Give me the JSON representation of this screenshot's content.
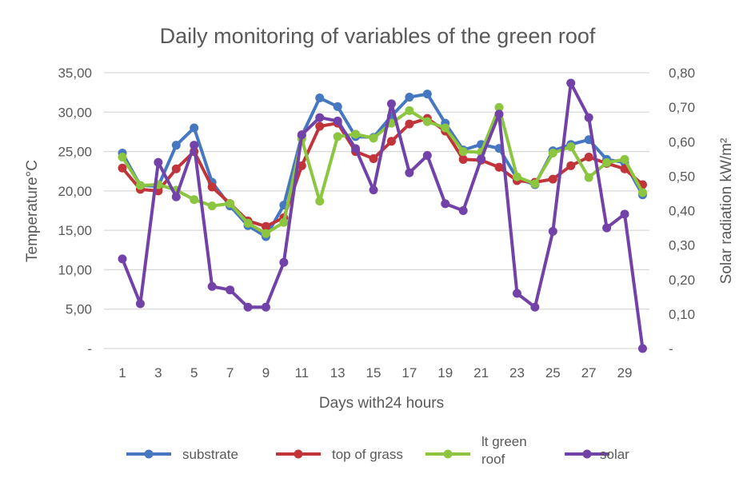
{
  "chart_data": {
    "type": "line",
    "title": "Daily monitoring  of variables of the green roof",
    "xlabel": "Days with24 hours",
    "ylabel": "Temperature°C",
    "y2label": "Solar radiation kW/m²",
    "x": [
      1,
      2,
      3,
      4,
      5,
      6,
      7,
      8,
      9,
      10,
      11,
      12,
      13,
      14,
      15,
      16,
      17,
      18,
      19,
      20,
      21,
      22,
      23,
      24,
      25,
      26,
      27,
      28,
      29,
      30
    ],
    "x_tick_labels": [
      "1",
      "3",
      "5",
      "7",
      "9",
      "11",
      "13",
      "15",
      "17",
      "19",
      "21",
      "23",
      "25",
      "27",
      "29"
    ],
    "ylim": [
      0,
      35
    ],
    "y_tick_labels": [
      "-",
      "5,00",
      "10,00",
      "15,00",
      "20,00",
      "25,00",
      "30,00",
      "35,00"
    ],
    "y2lim": [
      0,
      0.8
    ],
    "y2_tick_labels": [
      "-",
      "0,10",
      "0,20",
      "0,30",
      "0,40",
      "0,50",
      "0,60",
      "0,70",
      "0,80"
    ],
    "grid": true,
    "legend_position": "bottom",
    "series": [
      {
        "name": "substrate",
        "axis": "left",
        "color": "#4677c1",
        "values": [
          24.8,
          20.7,
          20.6,
          25.8,
          28.0,
          21.1,
          18.1,
          15.6,
          14.2,
          18.2,
          27.0,
          31.8,
          30.7,
          26.9,
          26.8,
          29.5,
          31.9,
          32.3,
          28.6,
          25.2,
          25.9,
          25.4,
          21.6,
          20.8,
          25.1,
          25.9,
          26.5,
          24.0,
          23.6,
          19.5
        ]
      },
      {
        "name": "top of grass",
        "axis": "left",
        "color": "#c0343a",
        "values": [
          22.9,
          20.2,
          20.0,
          22.8,
          25.0,
          20.5,
          18.4,
          16.2,
          15.5,
          16.6,
          23.2,
          28.2,
          28.6,
          25.0,
          24.1,
          26.3,
          28.5,
          29.2,
          27.6,
          24.0,
          23.9,
          23.0,
          21.3,
          21.1,
          21.5,
          23.2,
          24.3,
          23.5,
          22.8,
          20.8
        ]
      },
      {
        "name": "lt green roof",
        "axis": "left",
        "color": "#8cc53f",
        "values": [
          24.3,
          20.7,
          20.8,
          20.1,
          18.9,
          18.1,
          18.4,
          15.9,
          14.6,
          16.0,
          26.6,
          18.7,
          26.9,
          27.2,
          26.7,
          28.6,
          30.2,
          28.8,
          28.0,
          25.0,
          24.9,
          30.6,
          21.8,
          20.9,
          24.8,
          25.6,
          21.7,
          23.6,
          24.0,
          19.8
        ]
      },
      {
        "name": "solar",
        "axis": "right",
        "color": "#7342a8",
        "values": [
          0.26,
          0.13,
          0.54,
          0.44,
          0.59,
          0.18,
          0.17,
          0.12,
          0.12,
          0.25,
          0.62,
          0.67,
          0.66,
          0.58,
          0.46,
          0.71,
          0.51,
          0.56,
          0.42,
          0.4,
          0.55,
          0.68,
          0.16,
          0.12,
          0.34,
          0.77,
          0.67,
          0.35,
          0.39,
          0.0
        ]
      }
    ],
    "legend": {
      "items": [
        "substrate",
        "top of grass",
        "lt green\nroof",
        "solar"
      ]
    }
  }
}
